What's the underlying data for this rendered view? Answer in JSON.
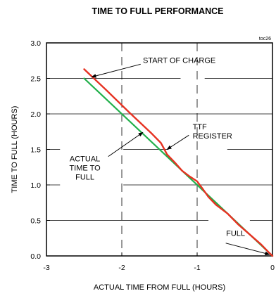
{
  "chart_data": {
    "type": "line",
    "title": "TIME TO FULL PERFORMANCE",
    "tag": "toc26",
    "xlabel": "ACTUAL TIME FROM FULL (HOURS)",
    "ylabel": "TIME TO FULL (HOURS)",
    "xlim": [
      -3,
      0
    ],
    "ylim": [
      0,
      3
    ],
    "xticks": [
      -3,
      -2,
      -1,
      0
    ],
    "yticks": [
      0,
      0.5,
      1,
      1.5,
      2,
      2.5,
      3
    ],
    "xtick_labels": [
      "-3",
      "-2",
      "-1",
      "0"
    ],
    "ytick_labels": [
      "0.0",
      "0.5",
      "1.0",
      "1.5",
      "2.0",
      "2.5",
      "3.0"
    ],
    "grid": true,
    "colors": {
      "ttf": "#e63222",
      "actual": "#22b04b"
    },
    "series": [
      {
        "key": "actual",
        "x": [
          -2.5,
          0
        ],
        "y": [
          2.5,
          0
        ]
      },
      {
        "key": "ttf",
        "x": [
          -2.5,
          -2.2,
          -1.9,
          -1.6,
          -1.48,
          -1.45,
          -1.4,
          -1.3,
          -1.2,
          -1.1,
          -1.0,
          -0.93,
          -0.85,
          -0.75,
          -0.6,
          -0.45,
          -0.3,
          -0.15,
          -0.05,
          0
        ],
        "y": [
          2.63,
          2.33,
          2.02,
          1.72,
          1.59,
          1.53,
          1.43,
          1.32,
          1.2,
          1.12,
          1.05,
          0.95,
          0.83,
          0.72,
          0.6,
          0.44,
          0.3,
          0.16,
          0.05,
          0
        ]
      }
    ],
    "annotations": [
      {
        "key": "start",
        "lines": [
          "START OF CHARGE"
        ]
      },
      {
        "key": "ttf",
        "lines": [
          "TTF",
          "REGISTER"
        ]
      },
      {
        "key": "actual",
        "lines": [
          "ACTUAL",
          "TIME TO",
          "FULL"
        ]
      },
      {
        "key": "full",
        "lines": [
          "FULL"
        ]
      }
    ]
  }
}
